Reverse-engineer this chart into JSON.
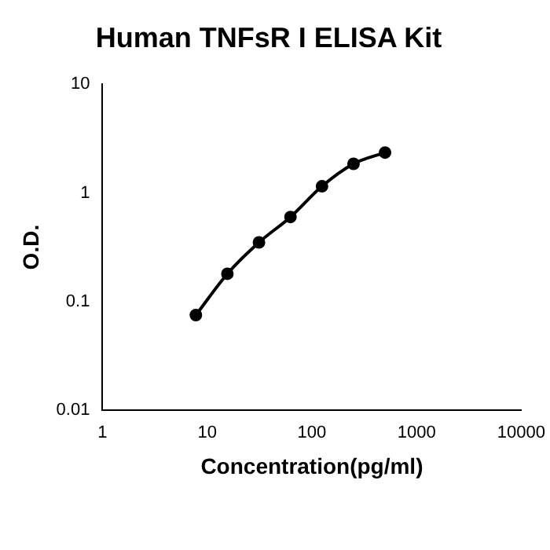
{
  "chart_data": {
    "type": "line",
    "title": "Human TNFsR I ELISA Kit",
    "xlabel": "Concentration(pg/ml)",
    "ylabel": "O.D.",
    "x": [
      7.8,
      15.6,
      31.25,
      62.5,
      125,
      250,
      500
    ],
    "series": [
      {
        "color": "#000000",
        "values": [
          0.075,
          0.18,
          0.35,
          0.6,
          1.15,
          1.85,
          2.35
        ]
      }
    ],
    "log": "xy",
    "xlim": [
      1,
      10000
    ],
    "xticks": [
      1,
      10,
      100,
      1000,
      10000
    ],
    "ylim": [
      0.01,
      10
    ],
    "yticks": [
      0.01,
      0.1,
      1,
      10
    ],
    "grid": false,
    "legend": false,
    "marker": "circle",
    "line_style": "solid"
  }
}
